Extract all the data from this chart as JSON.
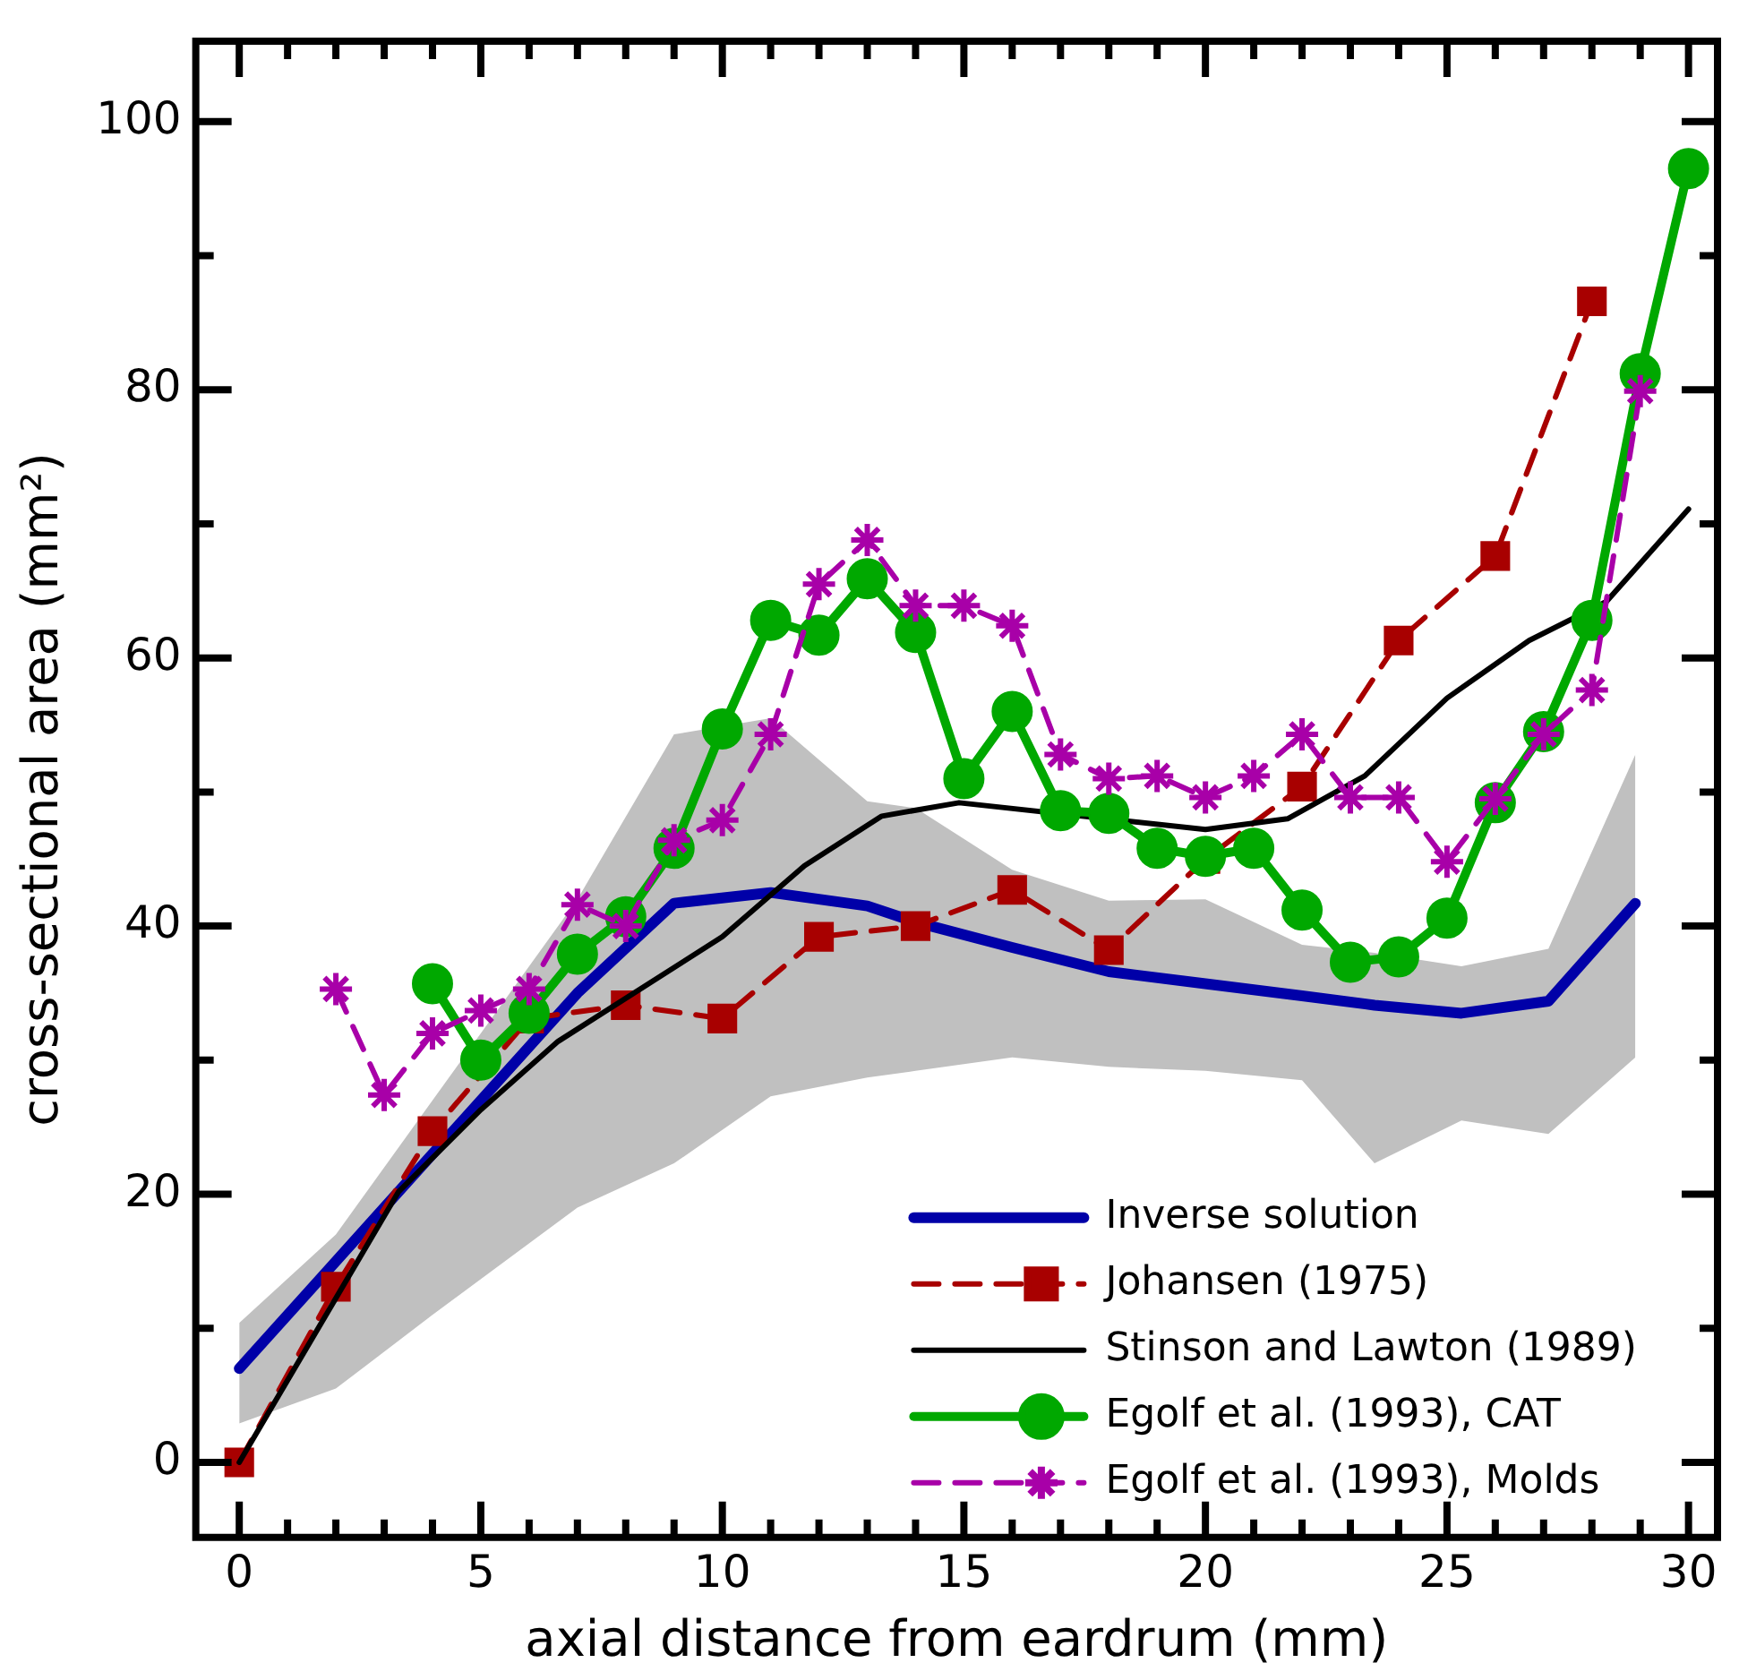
{
  "chart_data": {
    "type": "line",
    "xlabel": "axial distance from eardrum (mm)",
    "ylabel": "cross-sectional area (mm²)",
    "xlim": [
      -0.9,
      30.6
    ],
    "ylim": [
      -5.6,
      106
    ],
    "xticks": [
      0,
      {
        "value": 1,
        "label": null
      },
      {
        "value": 2,
        "label": null
      },
      {
        "value": 3,
        "label": null
      },
      {
        "value": 4,
        "label": null
      },
      5,
      {
        "value": 6,
        "label": null
      },
      {
        "value": 7,
        "label": null
      },
      {
        "value": 8,
        "label": null
      },
      {
        "value": 9,
        "label": null
      },
      10,
      {
        "value": 11,
        "label": null
      },
      {
        "value": 12,
        "label": null
      },
      {
        "value": 13,
        "label": null
      },
      {
        "value": 14,
        "label": null
      },
      15,
      {
        "value": 16,
        "label": null
      },
      {
        "value": 17,
        "label": null
      },
      {
        "value": 18,
        "label": null
      },
      {
        "value": 19,
        "label": null
      },
      20,
      {
        "value": 21,
        "label": null
      },
      {
        "value": 22,
        "label": null
      },
      {
        "value": 23,
        "label": null
      },
      {
        "value": 24,
        "label": null
      },
      25,
      {
        "value": 26,
        "label": null
      },
      {
        "value": 27,
        "label": null
      },
      {
        "value": 28,
        "label": null
      },
      {
        "value": 29,
        "label": null
      },
      30
    ],
    "yticks": [
      0,
      {
        "value": 10,
        "label": null
      },
      20,
      {
        "value": 30,
        "label": null
      },
      40,
      {
        "value": 50,
        "label": null
      },
      60,
      {
        "value": 70,
        "label": null
      },
      80,
      {
        "value": 90,
        "label": null
      },
      100
    ],
    "legend": "bottom right",
    "grid": false,
    "series": [
      {
        "name": "Inverse solution",
        "color": "#0000a8",
        "line_style": "solid",
        "marker": "none",
        "x": [
          0,
          2,
          4,
          7,
          9,
          11,
          13,
          14,
          16,
          18,
          20,
          22,
          23.5,
          25.3,
          27.1,
          28.9
        ],
        "values": [
          7,
          15,
          23,
          35,
          41.7,
          42.5,
          41.5,
          40.3,
          38.4,
          36.6,
          35.7,
          34.8,
          34.1,
          33.5,
          34.4,
          41.7
        ],
        "lower": [
          2.9,
          5.5,
          11,
          19,
          22.3,
          27.3,
          28.7,
          29.2,
          30.2,
          29.5,
          29.2,
          28.5,
          22.3,
          25.5,
          24.5,
          30.2
        ],
        "upper": [
          10.4,
          17,
          27,
          42,
          54.3,
          55.5,
          49.3,
          48.8,
          44.2,
          41.9,
          42,
          38.6,
          38,
          37,
          38.3,
          52.8
        ]
      },
      {
        "name": "Johansen (1975)",
        "color": "#a80000",
        "line_style": "dashed",
        "marker": "square",
        "x": [
          0,
          2,
          4,
          6,
          8,
          10,
          12,
          14,
          16,
          18,
          20,
          22,
          24,
          26,
          28
        ],
        "values": [
          0,
          13.1,
          24.7,
          33.1,
          34.1,
          33.1,
          39.2,
          40,
          42.7,
          38.2,
          45,
          50.4,
          61.3,
          67.6,
          86.6
        ]
      },
      {
        "name": "Stinson and Lawton (1989)",
        "color": "#000000",
        "line_style": "solid",
        "marker": "none",
        "x": [
          0,
          3.3,
          5,
          6.6,
          10,
          11.7,
          13.3,
          14.9,
          20,
          21.7,
          23.3,
          25,
          26.7,
          28.3,
          30
        ],
        "values": [
          0,
          20.2,
          26.3,
          31.4,
          39.2,
          44.5,
          48.2,
          49.2,
          47.2,
          48,
          51.2,
          57,
          61.3,
          64.2,
          71.1
        ]
      },
      {
        "name": "Egolf et al. (1993), CAT",
        "color": "#00a800",
        "line_style": "solid",
        "marker": "circle",
        "x": [
          4,
          5,
          6,
          7,
          8,
          9,
          10,
          11,
          12,
          13,
          14,
          15,
          16,
          17,
          18,
          19,
          20,
          21,
          22,
          23,
          24,
          25,
          26,
          27,
          28,
          29,
          30
        ],
        "values": [
          35.7,
          30,
          33.5,
          37.9,
          40.7,
          45.8,
          54.7,
          62.8,
          61.7,
          65.9,
          61.9,
          51,
          56,
          48.6,
          48.4,
          45.8,
          45.2,
          45.8,
          41.2,
          37.3,
          37.7,
          40.6,
          49.2,
          54.5,
          62.8,
          81.2,
          96.5
        ]
      },
      {
        "name": "Egolf et al. (1993), Molds",
        "color": "#a800a8",
        "line_style": "dashed",
        "marker": "cross",
        "x": [
          2,
          3,
          4,
          5,
          6,
          7,
          8,
          9,
          10,
          11,
          12,
          13,
          14,
          15,
          16,
          17,
          18,
          19,
          20,
          21,
          22,
          23,
          24,
          25,
          26,
          27,
          28,
          29
        ],
        "values": [
          35.3,
          27.4,
          32,
          33.7,
          35.3,
          41.6,
          40,
          46.4,
          47.9,
          54.3,
          65.5,
          68.8,
          63.9,
          63.9,
          62.4,
          52.8,
          51,
          51.2,
          49.6,
          51.2,
          54.3,
          49.6,
          49.6,
          44.8,
          49.5,
          54.3,
          57.6,
          79.9
        ]
      }
    ]
  }
}
